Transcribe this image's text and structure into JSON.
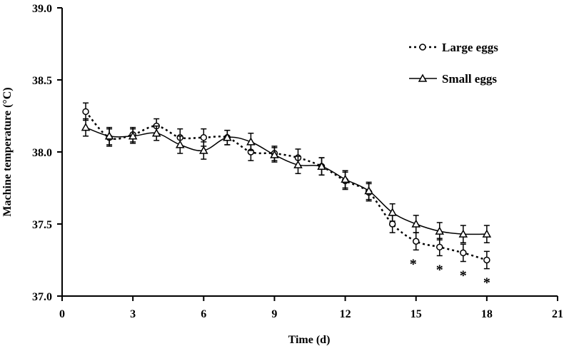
{
  "chart_data": {
    "type": "line",
    "title": "",
    "xlabel": "Time (d)",
    "ylabel": "Machine temperature (°C)",
    "xlim": [
      0,
      21
    ],
    "ylim": [
      37.0,
      39.0
    ],
    "xticks": [
      "0",
      "3",
      "6",
      "9",
      "12",
      "15",
      "18",
      "21"
    ],
    "yticks": [
      "37.0",
      "37.5",
      "38.0",
      "38.5",
      "39.0"
    ],
    "x": [
      1,
      2,
      3,
      4,
      5,
      6,
      7,
      8,
      9,
      10,
      11,
      12,
      13,
      14,
      15,
      16,
      17,
      18
    ],
    "series": [
      {
        "name": "Large eggs",
        "line_style": "dotted",
        "marker": "circle",
        "values": [
          38.28,
          38.1,
          38.12,
          38.18,
          38.1,
          38.1,
          38.1,
          38.0,
          37.99,
          37.96,
          37.9,
          37.8,
          37.72,
          37.5,
          37.38,
          37.34,
          37.3,
          37.25
        ],
        "errors": [
          0.06,
          0.06,
          0.05,
          0.05,
          0.06,
          0.06,
          0.05,
          0.06,
          0.05,
          0.06,
          0.06,
          0.06,
          0.06,
          0.06,
          0.06,
          0.06,
          0.06,
          0.06
        ]
      },
      {
        "name": "Small eggs",
        "line_style": "solid",
        "marker": "triangle",
        "values": [
          38.17,
          38.11,
          38.11,
          38.13,
          38.05,
          38.01,
          38.1,
          38.07,
          37.98,
          37.91,
          37.9,
          37.81,
          37.73,
          37.58,
          37.5,
          37.45,
          37.43,
          37.43
        ],
        "errors": [
          0.06,
          0.06,
          0.05,
          0.05,
          0.06,
          0.06,
          0.05,
          0.06,
          0.05,
          0.06,
          0.06,
          0.06,
          0.06,
          0.06,
          0.06,
          0.06,
          0.06,
          0.06
        ]
      }
    ],
    "significance_marker": "*",
    "significant_x": [
      15,
      16,
      17,
      18
    ],
    "legend_position": "top-right",
    "grid": false
  }
}
